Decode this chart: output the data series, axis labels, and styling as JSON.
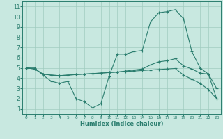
{
  "xlabel": "Humidex (Indice chaleur)",
  "bg_color": "#c8e8e0",
  "line_color": "#2a7d6e",
  "grid_color": "#a0ccbf",
  "xlim": [
    -0.5,
    23.5
  ],
  "ylim": [
    0.5,
    11.5
  ],
  "xticks": [
    0,
    1,
    2,
    3,
    4,
    5,
    6,
    7,
    8,
    9,
    10,
    11,
    12,
    13,
    14,
    15,
    16,
    17,
    18,
    19,
    20,
    21,
    22,
    23
  ],
  "yticks": [
    1,
    2,
    3,
    4,
    5,
    6,
    7,
    8,
    9,
    10,
    11
  ],
  "line1_x": [
    0,
    1,
    2,
    3,
    4,
    5,
    6,
    7,
    8,
    9,
    10,
    11,
    12,
    13,
    14,
    15,
    16,
    17,
    18,
    19,
    20,
    21,
    22,
    23
  ],
  "line1_y": [
    5.0,
    5.0,
    4.3,
    3.7,
    3.5,
    3.7,
    2.0,
    1.7,
    1.1,
    1.5,
    4.2,
    6.35,
    6.35,
    6.6,
    6.7,
    9.5,
    10.4,
    10.5,
    10.7,
    9.8,
    6.6,
    5.0,
    4.4,
    3.0
  ],
  "line2_x": [
    0,
    1,
    2,
    3,
    4,
    5,
    6,
    7,
    8,
    9,
    10,
    11,
    12,
    13,
    14,
    15,
    16,
    17,
    18,
    19,
    20,
    21,
    22,
    23
  ],
  "line2_y": [
    5.0,
    4.9,
    4.4,
    4.3,
    4.25,
    4.3,
    4.35,
    4.4,
    4.45,
    4.5,
    4.55,
    4.6,
    4.7,
    4.8,
    4.9,
    5.3,
    5.6,
    5.7,
    5.9,
    5.2,
    4.9,
    4.5,
    4.4,
    2.0
  ],
  "line3_x": [
    0,
    1,
    2,
    3,
    4,
    5,
    6,
    7,
    8,
    9,
    10,
    11,
    12,
    13,
    14,
    15,
    16,
    17,
    18,
    19,
    20,
    21,
    22,
    23
  ],
  "line3_y": [
    5.0,
    4.9,
    4.4,
    4.3,
    4.25,
    4.3,
    4.35,
    4.4,
    4.45,
    4.5,
    4.55,
    4.6,
    4.65,
    4.7,
    4.75,
    4.8,
    4.85,
    4.9,
    4.95,
    4.3,
    3.9,
    3.5,
    2.9,
    2.0
  ]
}
